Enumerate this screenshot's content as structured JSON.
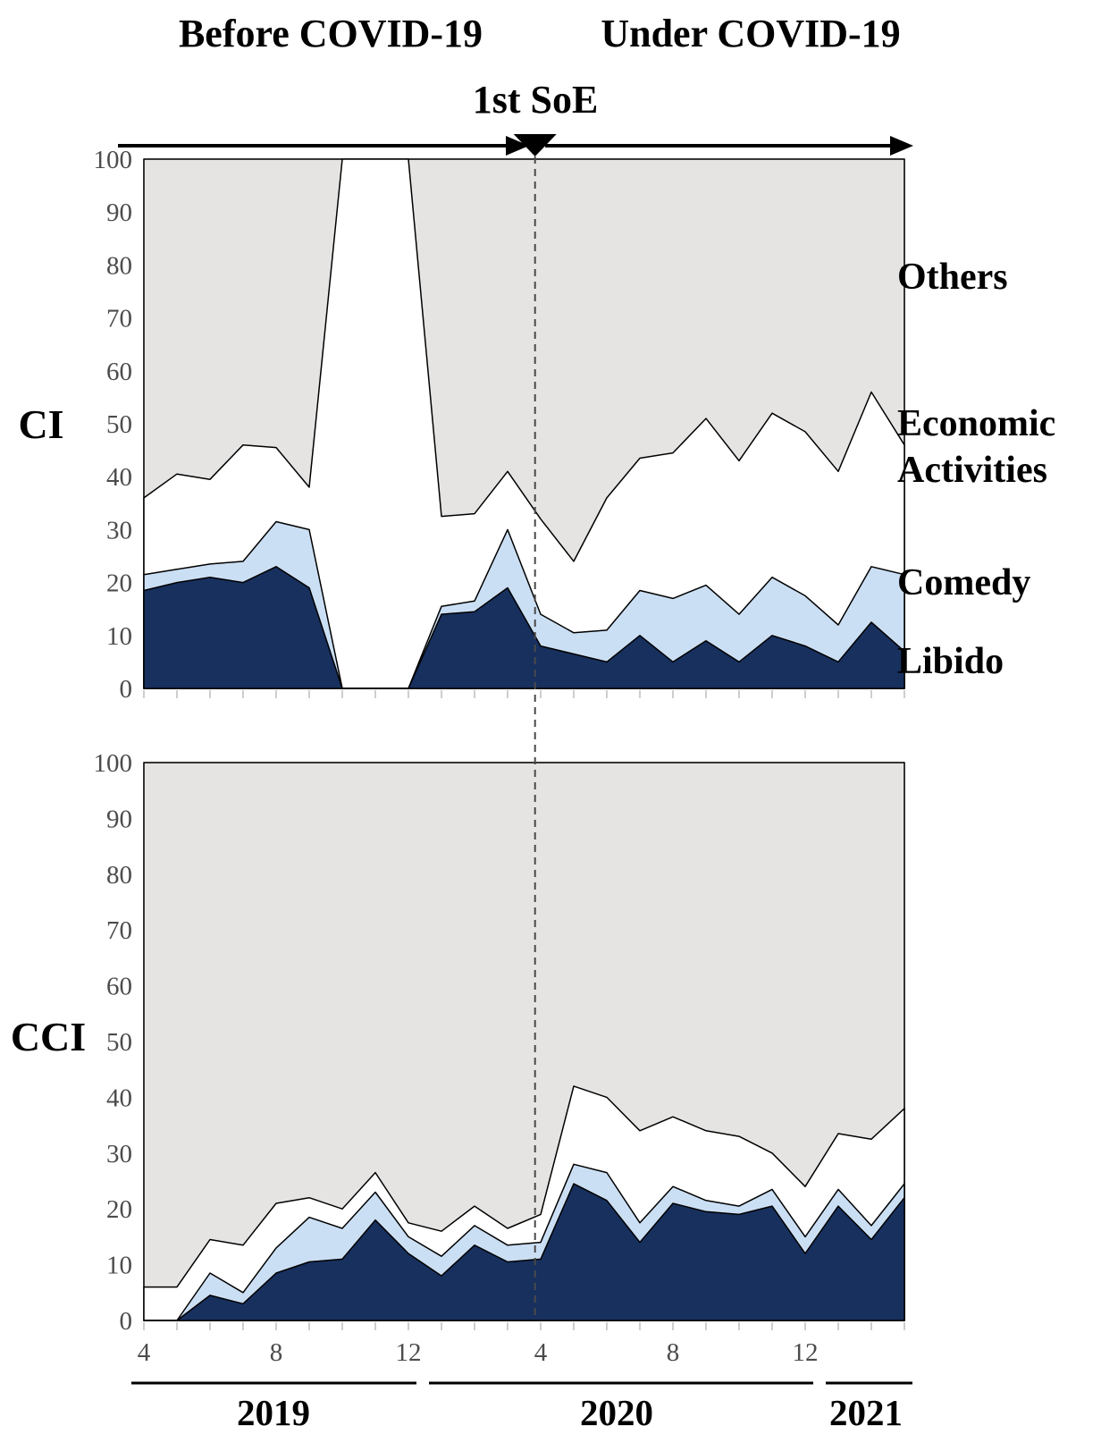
{
  "header": {
    "before_label": "Before COVID-19",
    "under_label": "Under COVID-19",
    "soe_label": "1st SoE"
  },
  "legend": {
    "others": "Others",
    "economic_line1": "Economic",
    "economic_line2": "Activities",
    "comedy": "Comedy",
    "libido": "Libido"
  },
  "colors": {
    "libido": "#17305e",
    "comedy": "#cbdff4",
    "economic": "#ffffff",
    "others": "#e5e4e2",
    "outline": "#000000",
    "dashed_line": "#4a4a4a",
    "axis_line": "#8c8c8c",
    "tick": "#c2c2c2",
    "tick_label": "#4c4c4c"
  },
  "x_axis": {
    "tick_labels": [
      {
        "label": "4",
        "month_index": 0
      },
      {
        "label": "8",
        "month_index": 4
      },
      {
        "label": "12",
        "month_index": 8
      },
      {
        "label": "4",
        "month_index": 12
      },
      {
        "label": "8",
        "month_index": 16
      },
      {
        "label": "12",
        "month_index": 20
      }
    ],
    "years": [
      {
        "label": "2019",
        "from": 0,
        "to": 8
      },
      {
        "label": "2020",
        "from": 9,
        "to": 20
      },
      {
        "label": "2021",
        "from": 21,
        "to": 23
      }
    ]
  },
  "annotation": {
    "soe_month_position": 11.83
  },
  "chart_data": [
    {
      "type": "area",
      "stacked": true,
      "ylabel": "CI",
      "ylim": [
        0,
        100
      ],
      "y_ticks": [
        0,
        10,
        20,
        30,
        40,
        50,
        60,
        70,
        80,
        90,
        100
      ],
      "grid": false,
      "legend_position": "right",
      "x_months": [
        "Apr 2019",
        "May 2019",
        "Jun 2019",
        "Jul 2019",
        "Aug 2019",
        "Sep 2019",
        "Oct 2019",
        "Nov 2019",
        "Dec 2019",
        "Jan 2020",
        "Feb 2020",
        "Mar 2020",
        "Apr 2020",
        "May 2020",
        "Jun 2020",
        "Jul 2020",
        "Aug 2020",
        "Sep 2020",
        "Oct 2020",
        "Nov 2020",
        "Dec 2020",
        "Jan 2021",
        "Feb 2021",
        "Mar 2021"
      ],
      "series": [
        {
          "name": "Libido",
          "values": [
            18.5,
            20,
            21,
            20,
            23,
            19,
            0,
            0,
            0,
            14,
            14.5,
            19,
            8,
            6.5,
            5,
            10,
            5,
            9,
            5,
            10,
            8,
            5,
            12.5,
            7
          ]
        },
        {
          "name": "Comedy",
          "values": [
            3,
            2.5,
            2.5,
            4,
            8.5,
            11,
            0,
            0,
            0,
            1.5,
            2,
            11,
            6,
            4,
            6,
            8.5,
            12,
            10.5,
            9,
            11,
            9.5,
            7,
            10.5,
            14.5
          ]
        },
        {
          "name": "Economic Activities",
          "values": [
            14.5,
            18,
            16,
            22,
            14,
            8,
            100,
            100,
            100,
            17,
            16.5,
            11,
            18,
            13.5,
            25,
            25,
            27.5,
            31.5,
            29,
            31,
            31,
            29,
            33,
            24.5
          ]
        },
        {
          "name": "Others",
          "values": [
            64,
            59.5,
            60.5,
            54,
            54.5,
            62,
            0,
            0,
            0,
            67.5,
            67,
            59,
            68,
            76,
            64,
            56.5,
            55.5,
            49,
            57,
            48,
            51.5,
            59,
            44,
            54
          ]
        }
      ]
    },
    {
      "type": "area",
      "stacked": true,
      "ylabel": "CCI",
      "ylim": [
        0,
        100
      ],
      "y_ticks": [
        0,
        10,
        20,
        30,
        40,
        50,
        60,
        70,
        80,
        90,
        100
      ],
      "grid": false,
      "legend_position": "right",
      "x_months": [
        "Apr 2019",
        "May 2019",
        "Jun 2019",
        "Jul 2019",
        "Aug 2019",
        "Sep 2019",
        "Oct 2019",
        "Nov 2019",
        "Dec 2019",
        "Jan 2020",
        "Feb 2020",
        "Mar 2020",
        "Apr 2020",
        "May 2020",
        "Jun 2020",
        "Jul 2020",
        "Aug 2020",
        "Sep 2020",
        "Oct 2020",
        "Nov 2020",
        "Dec 2020",
        "Jan 2021",
        "Feb 2021",
        "Mar 2021"
      ],
      "series": [
        {
          "name": "Libido",
          "values": [
            0,
            0,
            4.5,
            3,
            8.5,
            10.5,
            11,
            18,
            12,
            8,
            13.5,
            10.5,
            11,
            24.5,
            21.5,
            14,
            21,
            19.5,
            19,
            20.5,
            12,
            20.5,
            14.5,
            22
          ]
        },
        {
          "name": "Comedy",
          "values": [
            0,
            0,
            4,
            2,
            4.5,
            8,
            5.5,
            5,
            3,
            3.5,
            3.5,
            3,
            3,
            3.5,
            5,
            3.5,
            3,
            2,
            1.5,
            3,
            3,
            3,
            2.5,
            2.5
          ]
        },
        {
          "name": "Economic Activities",
          "values": [
            6,
            6,
            6,
            8.5,
            8,
            3.5,
            3.5,
            3.5,
            2.5,
            4.5,
            3.5,
            3,
            5,
            14,
            13.5,
            16.5,
            12.5,
            12.5,
            12.5,
            6.5,
            9,
            10,
            15.5,
            13.5
          ]
        },
        {
          "name": "Others",
          "values": [
            94,
            94,
            85.5,
            86.5,
            79,
            78,
            80,
            73.5,
            82.5,
            84,
            79.5,
            83.5,
            81,
            58,
            60,
            66,
            63.5,
            66,
            67,
            70,
            76,
            66.5,
            67.5,
            62
          ]
        }
      ]
    }
  ]
}
